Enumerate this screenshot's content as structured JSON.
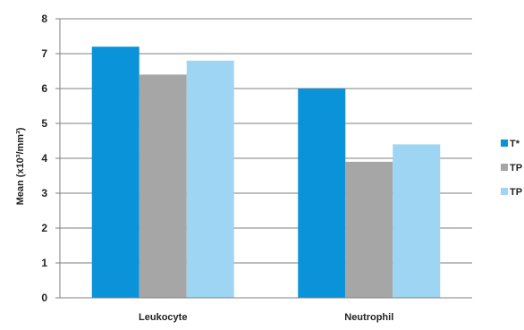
{
  "chart_data": {
    "type": "bar",
    "title": "",
    "xlabel": "",
    "ylabel": "Mean (x10³/mm³)",
    "ylim": [
      0,
      8
    ],
    "yticks": [
      "0",
      "1",
      "2",
      "3",
      "4",
      "5",
      "6",
      "7",
      "8"
    ],
    "grid": true,
    "legend_position": "right",
    "categories": [
      "Leukocyte",
      "Neutrophil"
    ],
    "series": [
      {
        "name": "T*",
        "color": "#0a93d8",
        "values": [
          7.2,
          6.0
        ]
      },
      {
        "name": "TP",
        "color": "#a6a6a6",
        "values": [
          6.4,
          3.9
        ]
      },
      {
        "name": "TP",
        "color": "#9dd5f3",
        "values": [
          6.8,
          4.4
        ]
      }
    ]
  }
}
